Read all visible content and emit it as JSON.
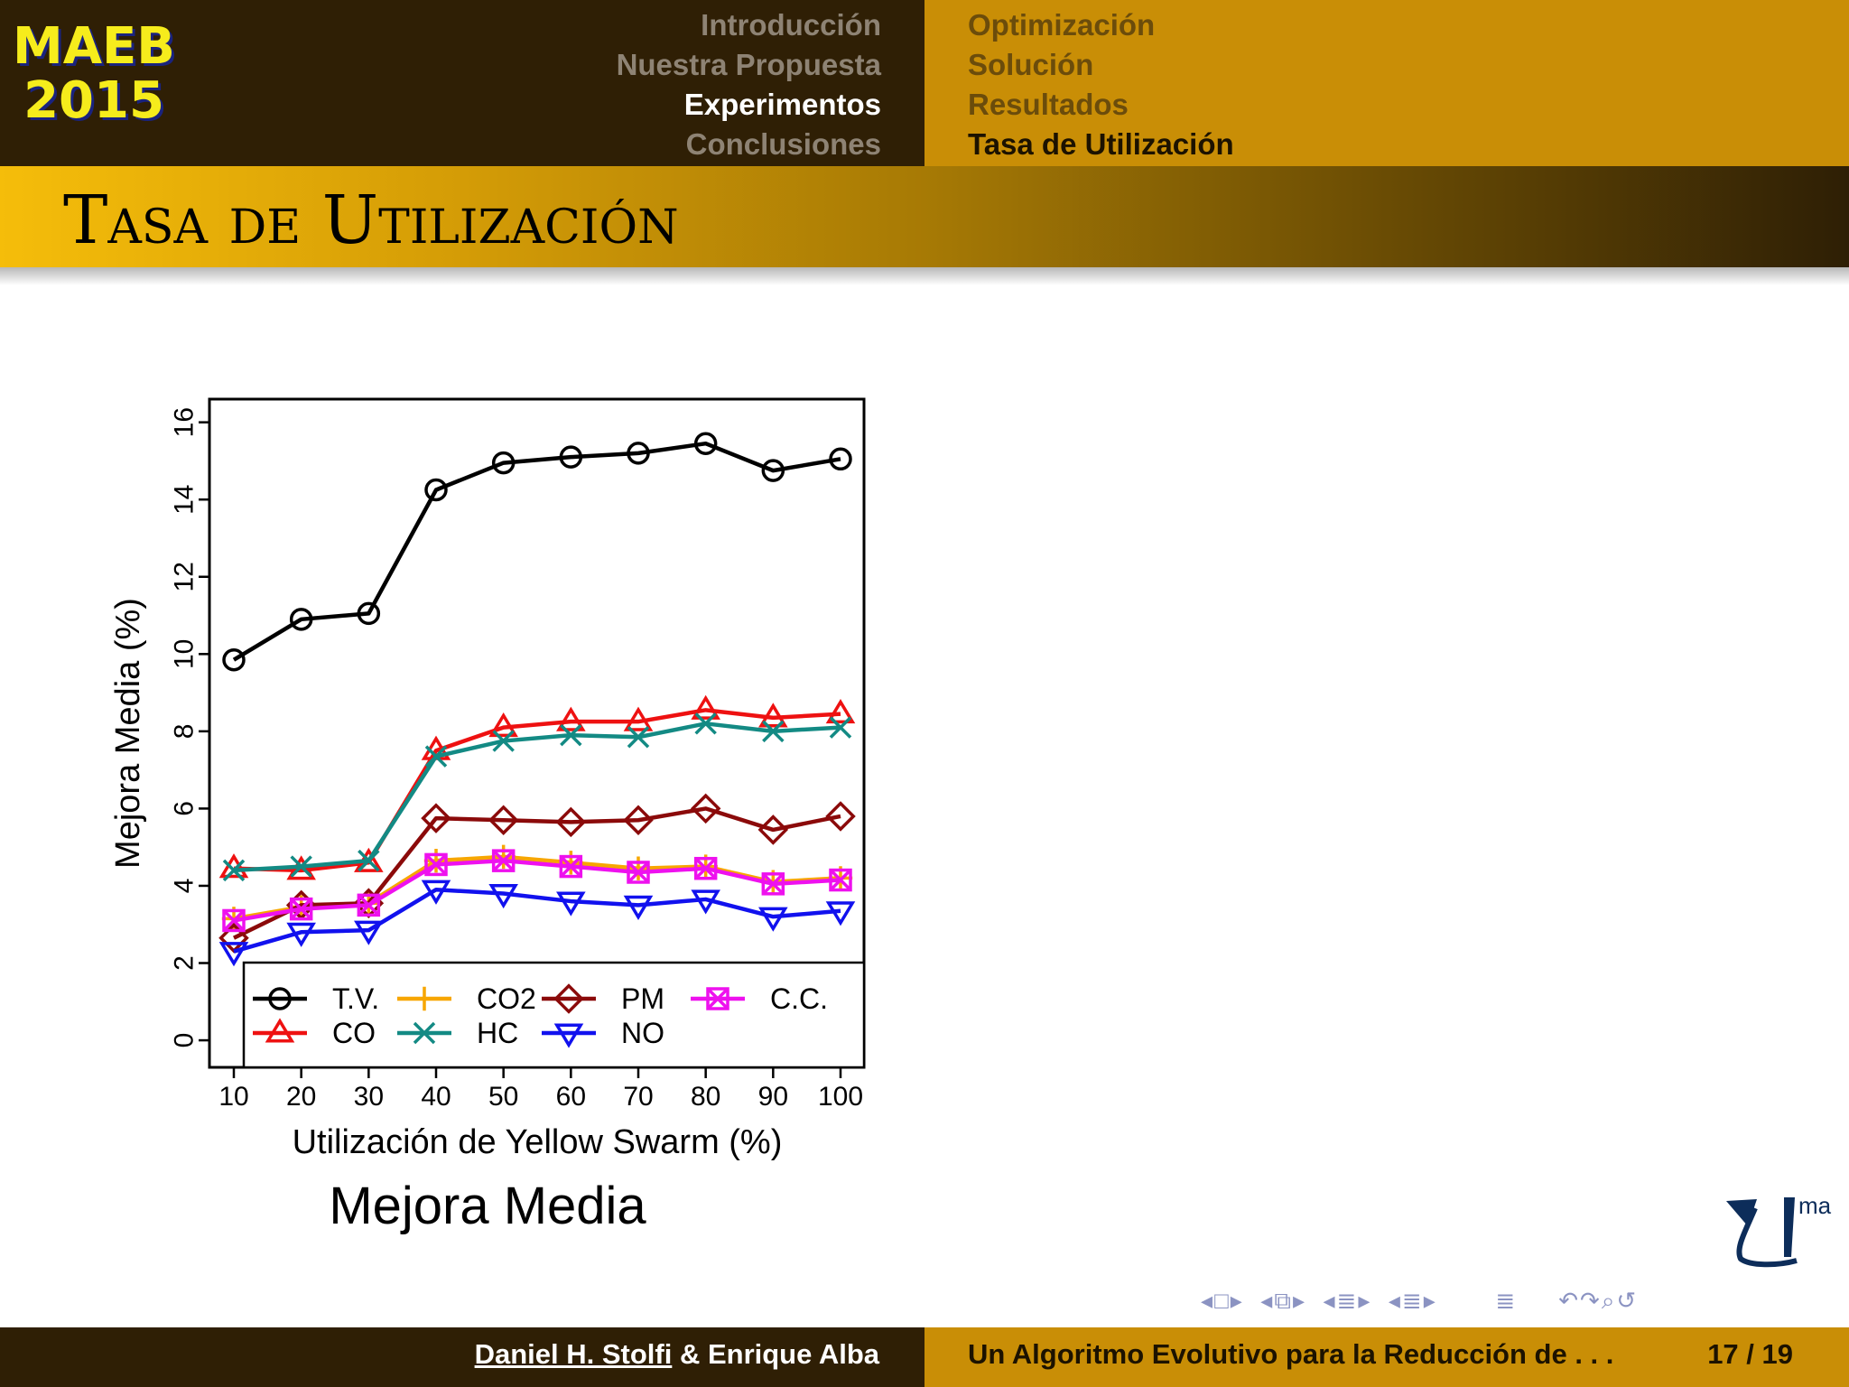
{
  "header": {
    "logo_line1": "MAEB",
    "logo_line2": "2015",
    "sections": [
      "Introducción",
      "Nuestra Propuesta",
      "Experimentos",
      "Conclusiones"
    ],
    "subsections": [
      "Optimización",
      "Solución",
      "Resultados",
      "Tasa de Utilización"
    ],
    "active_section": "Experimentos",
    "active_subsection": "Tasa de Utilización"
  },
  "frame_title": "Tasa de Utilización",
  "caption": "Mejora Media",
  "footer": {
    "author1": "Daniel H. Stolfi",
    "author_rest": " & Enrique Alba",
    "talk_title": "Un Algoritmo Evolutivo para la Reducción de . . .",
    "page": "17 / 19"
  },
  "logo_text": "ma",
  "colors": {
    "dark": "#2f1f05",
    "gold": "#c98e06",
    "logo_text": "#f6ec1c"
  },
  "chart_data": {
    "type": "line",
    "xlabel": "Utilización de Yellow Swarm (%)",
    "ylabel": "Mejora Media (%)",
    "x": [
      10,
      20,
      30,
      40,
      50,
      60,
      70,
      80,
      90,
      100
    ],
    "xlim": [
      10,
      100
    ],
    "ylim": [
      0,
      16
    ],
    "yticks": [
      0,
      2,
      4,
      6,
      8,
      10,
      12,
      14,
      16
    ],
    "legend_position": "bottom",
    "series": [
      {
        "name": "T.V.",
        "color": "#000000",
        "marker": "circle",
        "values": [
          9.85,
          10.9,
          11.05,
          14.25,
          14.95,
          15.1,
          15.2,
          15.45,
          14.75,
          15.05
        ]
      },
      {
        "name": "CO",
        "color": "#ee1111",
        "marker": "triangle-up",
        "values": [
          4.45,
          4.4,
          4.6,
          7.5,
          8.1,
          8.25,
          8.25,
          8.55,
          8.35,
          8.45
        ]
      },
      {
        "name": "CO2",
        "color": "#f7a600",
        "marker": "plus",
        "values": [
          3.15,
          3.45,
          3.55,
          4.65,
          4.75,
          4.6,
          4.45,
          4.5,
          4.1,
          4.2
        ]
      },
      {
        "name": "HC",
        "color": "#138a84",
        "marker": "cross",
        "values": [
          4.4,
          4.5,
          4.65,
          7.35,
          7.75,
          7.9,
          7.85,
          8.2,
          8.0,
          8.1
        ]
      },
      {
        "name": "PM",
        "color": "#8b0a0a",
        "marker": "diamond",
        "values": [
          2.65,
          3.5,
          3.55,
          5.75,
          5.7,
          5.65,
          5.7,
          6.0,
          5.45,
          5.8
        ]
      },
      {
        "name": "NO",
        "color": "#1111ee",
        "marker": "triangle-down",
        "values": [
          2.3,
          2.8,
          2.85,
          3.9,
          3.8,
          3.6,
          3.5,
          3.65,
          3.2,
          3.35
        ]
      },
      {
        "name": "C.C.",
        "color": "#ee11ee",
        "marker": "square-x",
        "values": [
          3.1,
          3.4,
          3.5,
          4.55,
          4.65,
          4.5,
          4.35,
          4.45,
          4.05,
          4.15
        ]
      }
    ]
  }
}
